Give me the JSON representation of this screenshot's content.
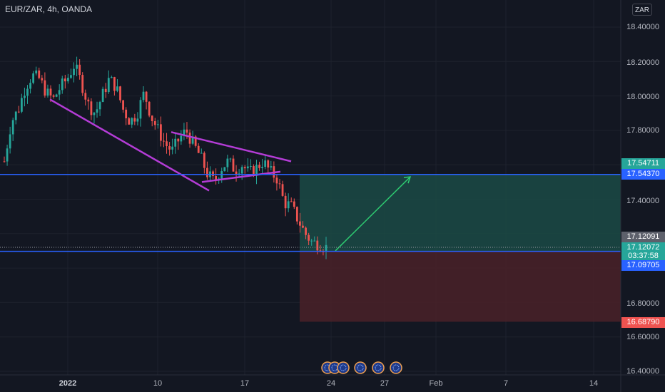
{
  "header": {
    "symbol_label": "EUR/ZAR, 4h, OANDA",
    "currency_button": "ZAR"
  },
  "price_axis": {
    "ticks": [
      "18.40000",
      "18.20000",
      "18.00000",
      "17.80000",
      "17.40000",
      "16.80000",
      "16.60000",
      "16.40000"
    ],
    "badges": {
      "target": "17.54711",
      "upper_line": "17.54370",
      "last_close": "17.12091",
      "current_price": "17.12072",
      "countdown": "03:37:58",
      "entry_line": "17.09705",
      "stop": "16.68790"
    }
  },
  "time_axis": {
    "ticks": [
      "2022",
      "10",
      "17",
      "24",
      "27",
      "Feb",
      "7",
      "14"
    ]
  },
  "colors": {
    "background": "#131722",
    "up_candle": "#26a69a",
    "down_candle": "#ef5350",
    "pattern_lines": "#b43cd6",
    "horizontal_lines": "#2962ff",
    "profit_zone": "#1b4a45",
    "loss_zone": "#4a2128",
    "arrow": "#2ecc71"
  },
  "events": {
    "icons": [
      "event-icon",
      "event-icon",
      "event-icon",
      "event-icon",
      "event-icon",
      "event-icon"
    ]
  },
  "chart_data": {
    "type": "candlestick",
    "symbol": "EUR/ZAR",
    "interval": "4h",
    "ylim": [
      16.4,
      18.5
    ],
    "x_ticks": [
      "2022",
      "10",
      "17",
      "24",
      "27",
      "Feb",
      "7",
      "14"
    ],
    "close_path": [
      17.62,
      17.85,
      17.92,
      18.05,
      18.12,
      18.1,
      18.02,
      17.98,
      18.05,
      18.1,
      18.18,
      18.08,
      17.95,
      17.9,
      18.0,
      18.1,
      18.05,
      17.92,
      17.85,
      17.9,
      18.02,
      17.88,
      17.8,
      17.72,
      17.68,
      17.75,
      17.8,
      17.72,
      17.65,
      17.55,
      17.5,
      17.58,
      17.62,
      17.57,
      17.6,
      17.55,
      17.58,
      17.62,
      17.56,
      17.52,
      17.38,
      17.36,
      17.28,
      17.2,
      17.15,
      17.14,
      17.12
    ],
    "horizontal_levels": [
      17.5437,
      17.09705
    ],
    "long_position": {
      "entry": 17.09705,
      "target": 17.54711,
      "stop": 16.6879
    },
    "last_price": 17.12072
  }
}
